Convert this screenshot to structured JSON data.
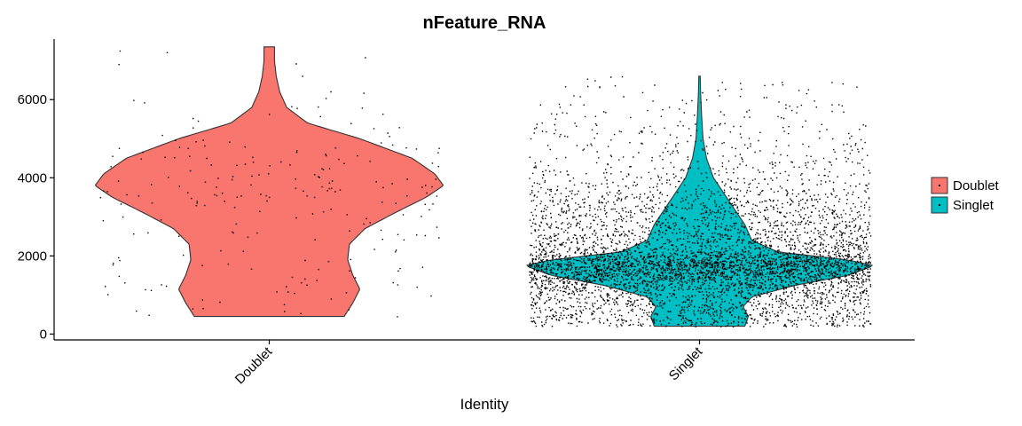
{
  "chart_data": {
    "type": "violin",
    "title": "nFeature_RNA",
    "xlabel": "Identity",
    "ylabel": "",
    "ylim": [
      -150,
      7550
    ],
    "yticks": [
      0,
      2000,
      4000,
      6000
    ],
    "categories": [
      "Doublet",
      "Singlet"
    ],
    "grid": false,
    "legend_position": "right",
    "series": [
      {
        "name": "Doublet",
        "color": "#F8766D",
        "min": 450,
        "max": 7350,
        "approx_cells": 230,
        "density_profile": [
          {
            "y": 450,
            "w": 0.43
          },
          {
            "y": 800,
            "w": 0.48
          },
          {
            "y": 1150,
            "w": 0.52
          },
          {
            "y": 1500,
            "w": 0.48
          },
          {
            "y": 1900,
            "w": 0.45
          },
          {
            "y": 2300,
            "w": 0.46
          },
          {
            "y": 2700,
            "w": 0.55
          },
          {
            "y": 3100,
            "w": 0.72
          },
          {
            "y": 3500,
            "w": 0.9
          },
          {
            "y": 3800,
            "w": 1.0
          },
          {
            "y": 4100,
            "w": 0.95
          },
          {
            "y": 4500,
            "w": 0.82
          },
          {
            "y": 5000,
            "w": 0.52
          },
          {
            "y": 5400,
            "w": 0.22
          },
          {
            "y": 5800,
            "w": 0.1
          },
          {
            "y": 6200,
            "w": 0.06
          },
          {
            "y": 6600,
            "w": 0.04
          },
          {
            "y": 7000,
            "w": 0.03
          },
          {
            "y": 7350,
            "w": 0.03
          }
        ]
      },
      {
        "name": "Singlet",
        "color": "#00BFC4",
        "min": 200,
        "max": 6600,
        "approx_cells": 5500,
        "density_profile": [
          {
            "y": 200,
            "w": 0.26
          },
          {
            "y": 450,
            "w": 0.28
          },
          {
            "y": 700,
            "w": 0.25
          },
          {
            "y": 950,
            "w": 0.3
          },
          {
            "y": 1250,
            "w": 0.55
          },
          {
            "y": 1500,
            "w": 0.85
          },
          {
            "y": 1750,
            "w": 1.0
          },
          {
            "y": 1900,
            "w": 0.85
          },
          {
            "y": 2100,
            "w": 0.45
          },
          {
            "y": 2400,
            "w": 0.3
          },
          {
            "y": 2800,
            "w": 0.26
          },
          {
            "y": 3200,
            "w": 0.2
          },
          {
            "y": 3600,
            "w": 0.14
          },
          {
            "y": 4000,
            "w": 0.08
          },
          {
            "y": 4500,
            "w": 0.04
          },
          {
            "y": 5000,
            "w": 0.02
          },
          {
            "y": 5600,
            "w": 0.012
          },
          {
            "y": 6200,
            "w": 0.006
          },
          {
            "y": 6600,
            "w": 0.004
          }
        ]
      }
    ]
  }
}
